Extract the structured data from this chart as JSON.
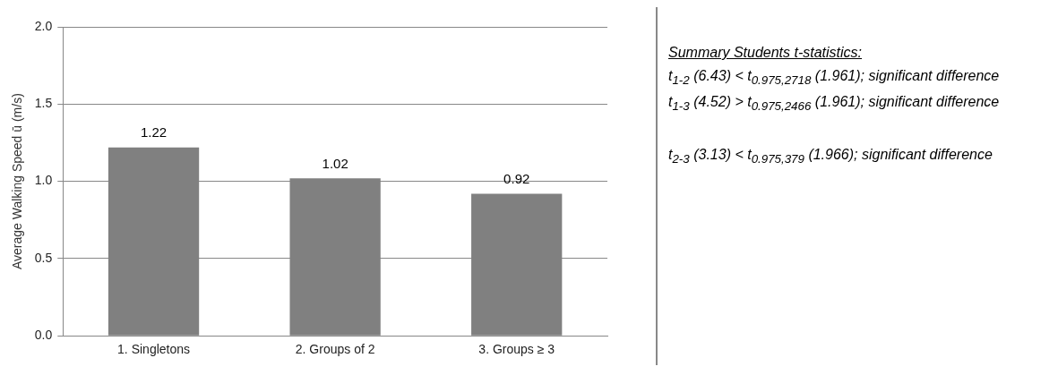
{
  "chart_data": {
    "type": "bar",
    "ylabel": "Average Walking Speed ū (m/s)",
    "categories": [
      "1. Singletons",
      "2. Groups of 2",
      "3. Groups ≥ 3"
    ],
    "values": [
      1.22,
      1.02,
      0.92
    ],
    "color": "#808080",
    "ylim": [
      0,
      2
    ],
    "yticks": [
      {
        "value": 0,
        "label": "0.0"
      },
      {
        "value": 0.5,
        "label": "0.5"
      },
      {
        "value": 1,
        "label": "1.0"
      },
      {
        "value": 1.5,
        "label": "1.5"
      },
      {
        "value": 2,
        "label": "2.0"
      }
    ],
    "grid": "y",
    "legend": false,
    "data_labels": true,
    "annotations": [
      "Summary Students t-statistics:",
      "t$_{1-2}$ (6.43) < t$_{0.975,2718}$ (1.961); significant difference",
      "t$_{1-3}$ (4.52) > t$_{0.975,2466}$ (1.961); significant difference",
      "t$_{2-3}$ (3.13) < t$_{0.975,379}$ (1.966); significant difference"
    ]
  }
}
